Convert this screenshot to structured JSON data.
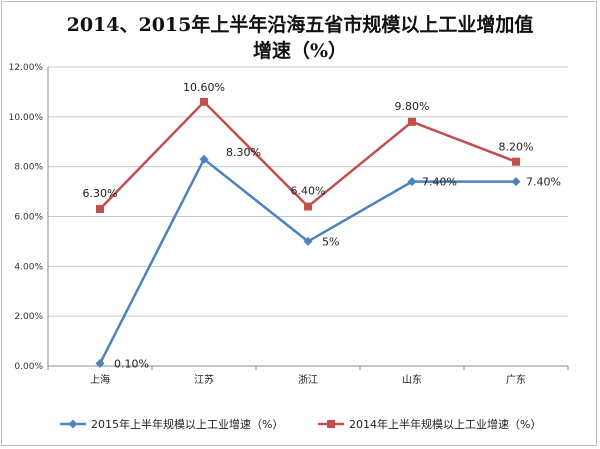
{
  "chart_data": {
    "type": "line",
    "title_line1": "2014、2015年上半年沿海五省市规模以上工业增加值",
    "title_line2": "增速（%）",
    "categories": [
      "上海",
      "江苏",
      "浙江",
      "山东",
      "广东"
    ],
    "ylim": [
      0,
      12
    ],
    "yticks": [
      "0.00%",
      "2.00%",
      "4.00%",
      "6.00%",
      "8.00%",
      "10.00%",
      "12.00%"
    ],
    "grid": true,
    "legend_position": "bottom",
    "series": [
      {
        "name": "2015年上半年规模以上工业增速（%）",
        "values": [
          0.1,
          8.3,
          5.0,
          7.4,
          7.4
        ],
        "labels": [
          "0.10%",
          "8.30%",
          "5%",
          "7.40%",
          "7.40%"
        ],
        "color": "#4f81bd",
        "marker": "diamond"
      },
      {
        "name": "2014年上半年规模以上工业增速（%）",
        "values": [
          6.3,
          10.6,
          6.4,
          9.8,
          8.2
        ],
        "labels": [
          "6.30%",
          "10.60%",
          "6.40%",
          "9.80%",
          "8.20%"
        ],
        "color": "#c0504d",
        "marker": "square"
      }
    ]
  }
}
